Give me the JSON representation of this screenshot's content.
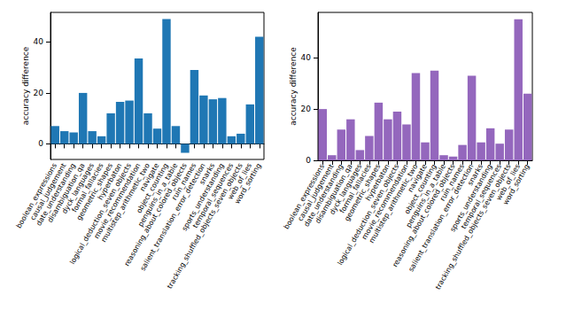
{
  "chart_data": [
    {
      "type": "bar",
      "y_label": "accuracy difference",
      "categories": [
        "boolean_expressions",
        "causal_judgement",
        "date_understanding",
        "disambiguation_qa",
        "dyck_languages",
        "formal_fallacies",
        "geometric_shapes",
        "hyperbaton",
        "logical_deduction_seven_objects",
        "movie_recommendation",
        "multistep_arithmetic_two",
        "navigate",
        "object_counting",
        "penguins_in_a_table",
        "reasoning_about_colored_objects",
        "ruin_names",
        "salient_translation_error_detection",
        "snarks",
        "sports_understanding",
        "temporal_sequences",
        "tracking_shuffled_objects_seven_objects",
        "web_of_lies",
        "word_sorting"
      ],
      "values": [
        7,
        5,
        4.5,
        20,
        5,
        3,
        12,
        16.5,
        17,
        33.5,
        12,
        6,
        49,
        7,
        -3.5,
        29,
        19,
        17.5,
        18,
        3,
        4,
        15.5,
        42
      ],
      "color": "#1f77b4",
      "ylim": [
        -6.1,
        51.6
      ],
      "yticks": [
        0,
        20,
        40
      ]
    },
    {
      "type": "bar",
      "y_label": "accuracy difference",
      "categories": [
        "boolean_expressions",
        "causal_judgement",
        "date_understanding",
        "disambiguation_qa",
        "dyck_languages",
        "formal_fallacies",
        "geometric_shapes",
        "hyperbaton",
        "logical_deduction_seven_objects",
        "movie_recommendation",
        "multistep_arithmetic_two",
        "navigate",
        "object_counting",
        "penguins_in_a_table",
        "reasoning_about_colored_objects",
        "ruin_names",
        "salient_translation_error_detection",
        "snarks",
        "sports_understanding",
        "temporal_sequences",
        "tracking_shuffled_objects_seven_objects",
        "web_of_lies",
        "word_sorting"
      ],
      "values": [
        20,
        2,
        12,
        16,
        4,
        9.5,
        22.5,
        16,
        19,
        14,
        34,
        7,
        35,
        2,
        1.5,
        6,
        33,
        7,
        12.5,
        6.5,
        12,
        55,
        26
      ],
      "color": "#9467bd",
      "ylim": [
        0,
        57.7
      ],
      "yticks": [
        0,
        20,
        40
      ]
    }
  ]
}
